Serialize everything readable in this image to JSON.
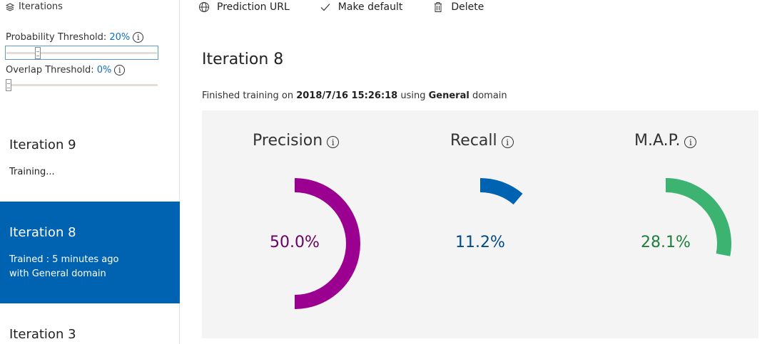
{
  "sidebar": {
    "header": "Iterations",
    "probability_threshold": {
      "label": "Probability Threshold:",
      "value": "20%"
    },
    "overlap_threshold": {
      "label": "Overlap Threshold:",
      "value": "0%"
    },
    "iterations": [
      {
        "name": "Iteration 9",
        "line1": "Training...",
        "line2": ""
      },
      {
        "name": "Iteration 8",
        "line1": "Trained : 5 minutes ago",
        "line2": "with General domain"
      },
      {
        "name": "Iteration 3"
      }
    ]
  },
  "toolbar": {
    "prediction_url": "Prediction URL",
    "make_default": "Make default",
    "delete": "Delete"
  },
  "main": {
    "title": "Iteration 8",
    "status": {
      "prefix": "Finished training on ",
      "datetime": "2018/7/16 15:26:18",
      "middle": " using ",
      "domain": "General",
      "suffix": " domain"
    }
  },
  "metrics": [
    {
      "label": "Precision",
      "value_text": "50.0%",
      "fraction": 0.5,
      "color": "#9b0091",
      "text_color": "#6a0062"
    },
    {
      "label": "Recall",
      "value_text": "11.2%",
      "fraction": 0.112,
      "color": "#0063b1",
      "text_color": "#004a86"
    },
    {
      "label": "M.A.P.",
      "value_text": "28.1%",
      "fraction": 0.281,
      "color": "#3cb371",
      "text_color": "#1e7e3c"
    }
  ]
}
